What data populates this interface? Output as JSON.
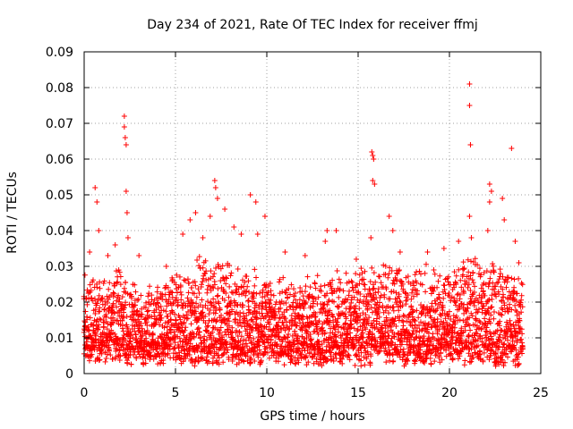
{
  "chart_data": {
    "type": "scatter",
    "title": "Day 234 of 2021, Rate Of TEC Index for receiver ffmj",
    "xlabel": "GPS time / hours",
    "ylabel": "ROTI / TECUs",
    "xlim": [
      0,
      25
    ],
    "ylim": [
      0,
      0.09
    ],
    "x_ticks": [
      0,
      5,
      10,
      15,
      20,
      25
    ],
    "y_ticks": [
      0,
      0.01,
      0.02,
      0.03,
      0.04,
      0.05,
      0.06,
      0.07,
      0.08,
      0.09
    ],
    "x_tick_labels": [
      "0",
      "5",
      "10",
      "15",
      "20",
      "25"
    ],
    "y_tick_labels": [
      "0",
      "0.01",
      "0.02",
      "0.03",
      "0.04",
      "0.05",
      "0.06",
      "0.07",
      "0.08",
      "0.09"
    ],
    "grid": true,
    "marker": "+",
    "series": [
      {
        "name": "ROTI",
        "color": "#ff0000",
        "dense_band": {
          "x_range": [
            0.0,
            24.0
          ],
          "step_hours": 0.04,
          "baseline_range": [
            0.002,
            0.008
          ],
          "envelope": [
            [
              0.0,
              0.028
            ],
            [
              1.0,
              0.025
            ],
            [
              2.0,
              0.03
            ],
            [
              3.0,
              0.022
            ],
            [
              4.0,
              0.024
            ],
            [
              5.0,
              0.028
            ],
            [
              6.0,
              0.03
            ],
            [
              7.0,
              0.032
            ],
            [
              8.0,
              0.03
            ],
            [
              9.0,
              0.028
            ],
            [
              10.0,
              0.025
            ],
            [
              11.0,
              0.027
            ],
            [
              12.0,
              0.026
            ],
            [
              13.0,
              0.028
            ],
            [
              14.0,
              0.027
            ],
            [
              15.0,
              0.028
            ],
            [
              16.0,
              0.031
            ],
            [
              17.0,
              0.03
            ],
            [
              18.0,
              0.028
            ],
            [
              19.0,
              0.029
            ],
            [
              20.0,
              0.03
            ],
            [
              21.0,
              0.032
            ],
            [
              22.0,
              0.03
            ],
            [
              23.0,
              0.031
            ],
            [
              24.0,
              0.026
            ]
          ]
        },
        "peaks": [
          {
            "x": 0.3,
            "y": 0.034
          },
          {
            "x": 0.6,
            "y": 0.052
          },
          {
            "x": 0.7,
            "y": 0.048
          },
          {
            "x": 0.8,
            "y": 0.04
          },
          {
            "x": 1.3,
            "y": 0.033
          },
          {
            "x": 1.7,
            "y": 0.036
          },
          {
            "x": 2.2,
            "y": 0.072
          },
          {
            "x": 2.2,
            "y": 0.069
          },
          {
            "x": 2.25,
            "y": 0.066
          },
          {
            "x": 2.3,
            "y": 0.064
          },
          {
            "x": 2.3,
            "y": 0.051
          },
          {
            "x": 2.35,
            "y": 0.045
          },
          {
            "x": 2.4,
            "y": 0.038
          },
          {
            "x": 3.0,
            "y": 0.033
          },
          {
            "x": 4.5,
            "y": 0.03
          },
          {
            "x": 5.4,
            "y": 0.039
          },
          {
            "x": 5.8,
            "y": 0.043
          },
          {
            "x": 6.1,
            "y": 0.045
          },
          {
            "x": 6.5,
            "y": 0.038
          },
          {
            "x": 6.9,
            "y": 0.044
          },
          {
            "x": 7.15,
            "y": 0.054
          },
          {
            "x": 7.2,
            "y": 0.052
          },
          {
            "x": 7.3,
            "y": 0.049
          },
          {
            "x": 7.7,
            "y": 0.046
          },
          {
            "x": 8.2,
            "y": 0.041
          },
          {
            "x": 8.6,
            "y": 0.039
          },
          {
            "x": 9.1,
            "y": 0.05
          },
          {
            "x": 9.4,
            "y": 0.048
          },
          {
            "x": 9.9,
            "y": 0.044
          },
          {
            "x": 9.5,
            "y": 0.039
          },
          {
            "x": 11.0,
            "y": 0.034
          },
          {
            "x": 12.1,
            "y": 0.033
          },
          {
            "x": 13.3,
            "y": 0.04
          },
          {
            "x": 13.8,
            "y": 0.04
          },
          {
            "x": 13.2,
            "y": 0.037
          },
          {
            "x": 14.9,
            "y": 0.032
          },
          {
            "x": 15.75,
            "y": 0.062
          },
          {
            "x": 15.8,
            "y": 0.061
          },
          {
            "x": 15.85,
            "y": 0.06
          },
          {
            "x": 15.8,
            "y": 0.054
          },
          {
            "x": 15.9,
            "y": 0.053
          },
          {
            "x": 15.7,
            "y": 0.038
          },
          {
            "x": 16.7,
            "y": 0.044
          },
          {
            "x": 16.9,
            "y": 0.04
          },
          {
            "x": 17.3,
            "y": 0.034
          },
          {
            "x": 18.8,
            "y": 0.034
          },
          {
            "x": 19.7,
            "y": 0.035
          },
          {
            "x": 20.5,
            "y": 0.037
          },
          {
            "x": 21.1,
            "y": 0.081
          },
          {
            "x": 21.1,
            "y": 0.075
          },
          {
            "x": 21.15,
            "y": 0.064
          },
          {
            "x": 21.1,
            "y": 0.044
          },
          {
            "x": 21.2,
            "y": 0.038
          },
          {
            "x": 22.2,
            "y": 0.053
          },
          {
            "x": 22.3,
            "y": 0.051
          },
          {
            "x": 22.2,
            "y": 0.048
          },
          {
            "x": 22.1,
            "y": 0.04
          },
          {
            "x": 22.9,
            "y": 0.049
          },
          {
            "x": 23.0,
            "y": 0.043
          },
          {
            "x": 23.4,
            "y": 0.063
          },
          {
            "x": 23.6,
            "y": 0.037
          },
          {
            "x": 23.8,
            "y": 0.031
          }
        ]
      }
    ]
  }
}
